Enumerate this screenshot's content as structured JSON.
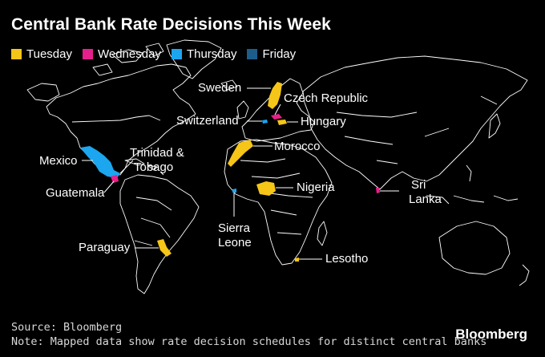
{
  "title": "Central Bank Rate Decisions This Week",
  "legend": [
    {
      "label": "Tuesday",
      "color": "#f5c518"
    },
    {
      "label": "Wednesday",
      "color": "#e5208a"
    },
    {
      "label": "Thursday",
      "color": "#1ba6ef"
    },
    {
      "label": "Friday",
      "color": "#1d5d8c"
    }
  ],
  "countries": {
    "sweden": {
      "label": "Sweden",
      "day": "Tuesday"
    },
    "czech": {
      "label": "Czech Republic",
      "day": "Wednesday"
    },
    "switzerland": {
      "label": "Switzerland",
      "day": "Thursday"
    },
    "hungary": {
      "label": "Hungary",
      "day": "Tuesday"
    },
    "morocco": {
      "label": "Morocco",
      "day": "Tuesday"
    },
    "nigeria": {
      "label": "Nigeria",
      "day": "Tuesday"
    },
    "sierra_leone": {
      "label": "Sierra Leone",
      "day": "Thursday"
    },
    "lesotho": {
      "label": "Lesotho",
      "day": "Tuesday"
    },
    "sri_lanka": {
      "label": "Sri Lanka",
      "day": "Wednesday"
    },
    "mexico": {
      "label": "Mexico",
      "day": "Thursday"
    },
    "guatemala": {
      "label": "Guatemala",
      "day": "Wednesday"
    },
    "trinidad": {
      "label": "Trinidad & Tobago",
      "day": "Friday"
    },
    "paraguay": {
      "label": "Paraguay",
      "day": "Tuesday"
    }
  },
  "labels": {
    "sweden": "Sweden",
    "czech": "Czech Republic",
    "switzerland": "Switzerland",
    "hungary": "Hungary",
    "morocco": "Morocco",
    "nigeria": "Nigeria",
    "sierra_1": "Sierra",
    "sierra_2": "Leone",
    "lesotho": "Lesotho",
    "srilanka_1": "Sri",
    "srilanka_2": "Lanka",
    "mexico": "Mexico",
    "guatemala": "Guatemala",
    "trinidad_1": "Trinidad &",
    "trinidad_2": "Tobago",
    "paraguay": "Paraguay"
  },
  "source": "Source: Bloomberg",
  "note": "Note: Mapped data show rate decision schedules for distinct central banks",
  "brand": "Bloomberg"
}
